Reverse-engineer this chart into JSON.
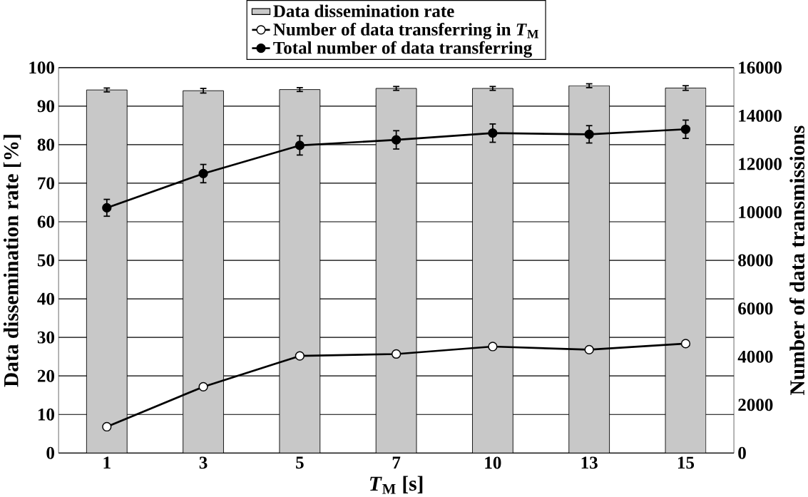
{
  "chart_data": {
    "type": "bar",
    "categories": [
      "1",
      "3",
      "5",
      "7",
      "10",
      "13",
      "15"
    ],
    "xlabel": "*T*$_{M}$ [s]",
    "ylabel": "Data dissemination rate [%]",
    "y2label": "Number of data transmissions",
    "ylim": [
      0,
      100
    ],
    "yticks": [
      0,
      10,
      20,
      30,
      40,
      50,
      60,
      70,
      80,
      90,
      100
    ],
    "y2lim": [
      0,
      16000
    ],
    "y2ticks": [
      0,
      2000,
      4000,
      6000,
      8000,
      10000,
      12000,
      14000,
      16000
    ],
    "grid": "y",
    "legend": "top",
    "marker": "circle",
    "series": [
      {
        "name": "Data dissemination rate",
        "color": "#c8c8c8",
        "values": [
          94.2,
          94.0,
          94.3,
          94.6,
          94.6,
          95.3,
          94.7
        ],
        "errors": [
          0.5,
          0.6,
          0.5,
          0.5,
          0.5,
          0.5,
          0.6
        ]
      },
      {
        "name": "Number of data transferring in *T*$_{M}$",
        "type": "line",
        "axis": "y2",
        "color": "#ffffff",
        "values": [
          1090,
          2750,
          4030,
          4110,
          4420,
          4290,
          4540
        ]
      },
      {
        "name": "Total number of data transferring",
        "type": "line",
        "axis": "y2",
        "color": "#000000",
        "values": [
          10180,
          11600,
          12770,
          13000,
          13280,
          13230,
          13440
        ],
        "errors": [
          350,
          380,
          400,
          380,
          380,
          360,
          380
        ]
      }
    ]
  }
}
